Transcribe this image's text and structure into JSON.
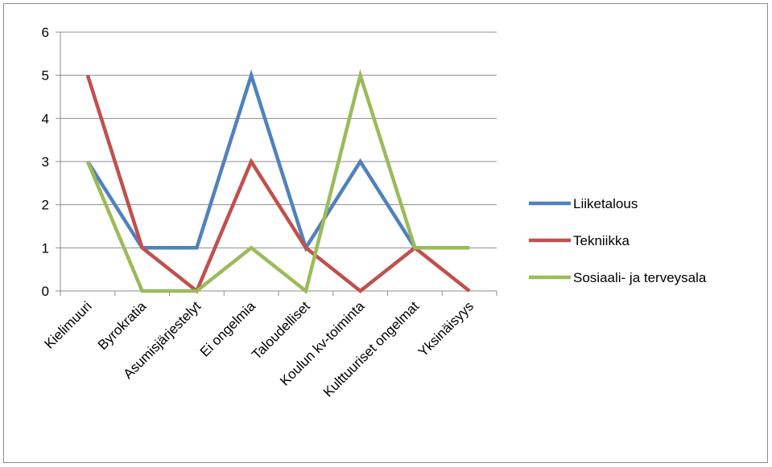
{
  "chart_data": {
    "type": "line",
    "categories": [
      "Kielimuuri",
      "Byrokratia",
      "Asumisjärjestelyt",
      "Ei ongelmia",
      "Taloudelliset",
      "Koulun kv-toiminta",
      "Kulttuuriset ongelmat",
      "Yksinäisyys"
    ],
    "ylim": [
      0,
      6
    ],
    "yticks": [
      0,
      1,
      2,
      3,
      4,
      5,
      6
    ],
    "grid": true,
    "legend_position": "right",
    "series": [
      {
        "name": "Liiketalous",
        "color": "#4f81bd",
        "values": [
          3,
          1,
          1,
          5,
          1,
          3,
          1,
          1
        ]
      },
      {
        "name": "Tekniikka",
        "color": "#c0504d",
        "values": [
          5,
          1,
          0,
          3,
          1,
          0,
          1,
          0
        ]
      },
      {
        "name": "Sosiaali- ja terveysala",
        "color": "#9bbb59",
        "values": [
          3,
          0,
          0,
          1,
          0,
          5,
          1,
          1
        ]
      }
    ]
  }
}
